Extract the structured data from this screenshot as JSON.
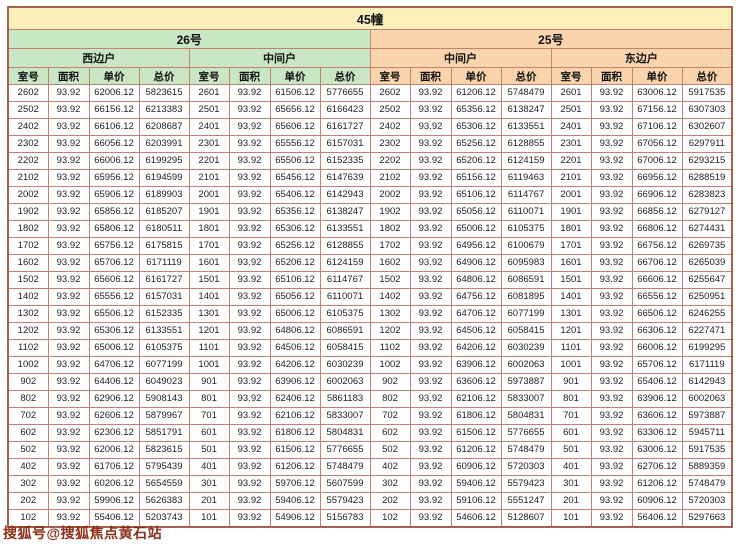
{
  "title": "45幢",
  "watermark": "搜狐号@搜狐焦点黄石站",
  "building_headers": [
    "26号",
    "25号"
  ],
  "unit_headers": [
    "西边户",
    "中间户",
    "中间户",
    "东边户"
  ],
  "column_headers": [
    "室号",
    "面积",
    "单价",
    "总价"
  ],
  "colors": {
    "title_bg": "#fbf0ba",
    "green_bg": "#c9e6c5",
    "orange_bg": "#fad4ad",
    "grid_border": "#c4826e",
    "watermark_text": "#8e2d16"
  },
  "rows": [
    [
      "2602",
      "93.92",
      "62006.12",
      "5823615",
      "2601",
      "93.92",
      "61506.12",
      "5776655",
      "2602",
      "93.92",
      "61206.12",
      "5748479",
      "2601",
      "93.92",
      "63006.12",
      "5917535"
    ],
    [
      "2502",
      "93.92",
      "66156.12",
      "6213383",
      "2501",
      "93.92",
      "65656.12",
      "6166423",
      "2502",
      "93.92",
      "65356.12",
      "6138247",
      "2501",
      "93.92",
      "67156.12",
      "6307303"
    ],
    [
      "2402",
      "93.92",
      "66106.12",
      "6208687",
      "2401",
      "93.92",
      "65606.12",
      "6161727",
      "2402",
      "93.92",
      "65306.12",
      "6133551",
      "2401",
      "93.92",
      "67106.12",
      "6302607"
    ],
    [
      "2302",
      "93.92",
      "66056.12",
      "6203991",
      "2301",
      "93.92",
      "65556.12",
      "6157031",
      "2302",
      "93.92",
      "65256.12",
      "6128855",
      "2301",
      "93.92",
      "67056.12",
      "6297911"
    ],
    [
      "2202",
      "93.92",
      "66006.12",
      "6199295",
      "2201",
      "93.92",
      "65506.12",
      "6152335",
      "2202",
      "93.92",
      "65206.12",
      "6124159",
      "2201",
      "93.92",
      "67006.12",
      "6293215"
    ],
    [
      "2102",
      "93.92",
      "65956.12",
      "6194599",
      "2101",
      "93.92",
      "65456.12",
      "6147639",
      "2102",
      "93.92",
      "65156.12",
      "6119463",
      "2101",
      "93.92",
      "66956.12",
      "6288519"
    ],
    [
      "2002",
      "93.92",
      "65906.12",
      "6189903",
      "2001",
      "93.92",
      "65406.12",
      "6142943",
      "2002",
      "93.92",
      "65106.12",
      "6114767",
      "2001",
      "93.92",
      "66906.12",
      "6283823"
    ],
    [
      "1902",
      "93.92",
      "65856.12",
      "6185207",
      "1901",
      "93.92",
      "65356.12",
      "6138247",
      "1902",
      "93.92",
      "65056.12",
      "6110071",
      "1901",
      "93.92",
      "66856.12",
      "6279127"
    ],
    [
      "1802",
      "93.92",
      "65806.12",
      "6180511",
      "1801",
      "93.92",
      "65306.12",
      "6133551",
      "1802",
      "93.92",
      "65006.12",
      "6105375",
      "1801",
      "93.92",
      "66806.12",
      "6274431"
    ],
    [
      "1702",
      "93.92",
      "65756.12",
      "6175815",
      "1701",
      "93.92",
      "65256.12",
      "6128855",
      "1702",
      "93.92",
      "64956.12",
      "6100679",
      "1701",
      "93.92",
      "66756.12",
      "6269735"
    ],
    [
      "1602",
      "93.92",
      "65706.12",
      "6171119",
      "1601",
      "93.92",
      "65206.12",
      "6124159",
      "1602",
      "93.92",
      "64906.12",
      "6095983",
      "1601",
      "93.92",
      "66706.12",
      "6265039"
    ],
    [
      "1502",
      "93.92",
      "65606.12",
      "6161727",
      "1501",
      "93.92",
      "65106.12",
      "6114767",
      "1502",
      "93.92",
      "64806.12",
      "6086591",
      "1501",
      "93.92",
      "66606.12",
      "6255647"
    ],
    [
      "1402",
      "93.92",
      "65556.12",
      "6157031",
      "1401",
      "93.92",
      "65056.12",
      "6110071",
      "1402",
      "93.92",
      "64756.12",
      "6081895",
      "1401",
      "93.92",
      "66556.12",
      "6250951"
    ],
    [
      "1302",
      "93.92",
      "65506.12",
      "6152335",
      "1301",
      "93.92",
      "65006.12",
      "6105375",
      "1302",
      "93.92",
      "64706.12",
      "6077199",
      "1301",
      "93.92",
      "66506.12",
      "6246255"
    ],
    [
      "1202",
      "93.92",
      "65306.12",
      "6133551",
      "1201",
      "93.92",
      "64806.12",
      "6086591",
      "1202",
      "93.92",
      "64506.12",
      "6058415",
      "1201",
      "93.92",
      "66306.12",
      "6227471"
    ],
    [
      "1102",
      "93.92",
      "65006.12",
      "6105375",
      "1101",
      "93.92",
      "64506.12",
      "6058415",
      "1102",
      "93.92",
      "64206.12",
      "6030239",
      "1101",
      "93.92",
      "66006.12",
      "6199295"
    ],
    [
      "1002",
      "93.92",
      "64706.12",
      "6077199",
      "1001",
      "93.92",
      "64206.12",
      "6030239",
      "1002",
      "93.92",
      "63906.12",
      "6002063",
      "1001",
      "93.92",
      "65706.12",
      "6171119"
    ],
    [
      "902",
      "93.92",
      "64406.12",
      "6049023",
      "901",
      "93.92",
      "63906.12",
      "6002063",
      "902",
      "93.92",
      "63606.12",
      "5973887",
      "901",
      "93.92",
      "65406.12",
      "6142943"
    ],
    [
      "802",
      "93.92",
      "62906.12",
      "5908143",
      "801",
      "93.92",
      "62406.12",
      "5861183",
      "802",
      "93.92",
      "62106.12",
      "5833007",
      "801",
      "93.92",
      "63906.12",
      "6002063"
    ],
    [
      "702",
      "93.92",
      "62606.12",
      "5879967",
      "701",
      "93.92",
      "62106.12",
      "5833007",
      "702",
      "93.92",
      "61806.12",
      "5804831",
      "701",
      "93.92",
      "63606.12",
      "5973887"
    ],
    [
      "602",
      "93.92",
      "62306.12",
      "5851791",
      "601",
      "93.92",
      "61806.12",
      "5804831",
      "602",
      "93.92",
      "61506.12",
      "5776655",
      "601",
      "93.92",
      "63306.12",
      "5945711"
    ],
    [
      "502",
      "93.92",
      "62006.12",
      "5823615",
      "501",
      "93.92",
      "61506.12",
      "5776655",
      "502",
      "93.92",
      "61206.12",
      "5748479",
      "501",
      "93.92",
      "63006.12",
      "5917535"
    ],
    [
      "402",
      "93.92",
      "61706.12",
      "5795439",
      "401",
      "93.92",
      "61206.12",
      "5748479",
      "402",
      "93.92",
      "60906.12",
      "5720303",
      "401",
      "93.92",
      "62706.12",
      "5889359"
    ],
    [
      "302",
      "93.92",
      "60206.12",
      "5654559",
      "301",
      "93.92",
      "59706.12",
      "5607599",
      "302",
      "93.92",
      "59406.12",
      "5579423",
      "301",
      "93.92",
      "61206.12",
      "5748479"
    ],
    [
      "202",
      "93.92",
      "59906.12",
      "5626383",
      "201",
      "93.92",
      "59406.12",
      "5579423",
      "202",
      "93.92",
      "59106.12",
      "5551247",
      "201",
      "93.92",
      "60906.12",
      "5720303"
    ],
    [
      "102",
      "93.92",
      "55406.12",
      "5203743",
      "101",
      "93.92",
      "54906.12",
      "5156783",
      "102",
      "93.92",
      "54606.12",
      "5128607",
      "101",
      "93.92",
      "56406.12",
      "5297663"
    ]
  ]
}
